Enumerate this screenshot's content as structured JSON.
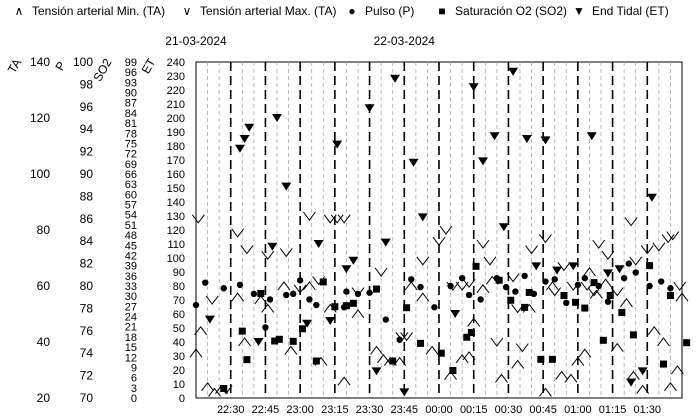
{
  "legend": [
    {
      "symbol": "caret-up",
      "label": "Tensión arterial Min. (TA)"
    },
    {
      "symbol": "caret-down",
      "label": "Tensión arterial Max. (TA)"
    },
    {
      "symbol": "circle",
      "label": "Pulso (P)"
    },
    {
      "symbol": "square",
      "label": "Saturación O2 (SO2)"
    },
    {
      "symbol": "triangle-down",
      "label": "End Tidal (ET)"
    }
  ],
  "chart_data": {
    "type": "scatter",
    "dates": [
      {
        "label": "21-03-2024",
        "at": "22:15"
      },
      {
        "label": "22-03-2024",
        "at": "23:45"
      }
    ],
    "x_ticks": [
      "22:30",
      "22:45",
      "23:00",
      "23:15",
      "23:30",
      "23:45",
      "00:00",
      "00:15",
      "00:30",
      "00:45",
      "01:00",
      "01:15",
      "01:30"
    ],
    "x_range": [
      "22:15",
      "01:45"
    ],
    "axes": [
      {
        "name": "TA",
        "range": [
          20,
          140
        ],
        "ticks": [
          "20",
          "40",
          "60",
          "80",
          "100",
          "120",
          "140"
        ]
      },
      {
        "name": "P",
        "range": [
          70,
          100
        ],
        "ticks": [
          "70",
          "72",
          "74",
          "76",
          "78",
          "80",
          "82",
          "84",
          "86",
          "88",
          "90",
          "92",
          "94",
          "96",
          "98",
          "100"
        ]
      },
      {
        "name": "SO2",
        "range": [
          0,
          99
        ],
        "ticks": [
          "0",
          "3",
          "6",
          "9",
          "12",
          "15",
          "18",
          "21",
          "24",
          "27",
          "30",
          "33",
          "36",
          "39",
          "42",
          "45",
          "48",
          "51",
          "54",
          "57",
          "60",
          "63",
          "66",
          "69",
          "72",
          "75",
          "78",
          "81",
          "84",
          "87",
          "90",
          "93",
          "96",
          "99"
        ]
      },
      {
        "name": "ET",
        "range": [
          0,
          240
        ],
        "ticks": [
          "0",
          "10",
          "20",
          "30",
          "40",
          "50",
          "60",
          "70",
          "80",
          "90",
          "100",
          "110",
          "120",
          "130",
          "140",
          "150",
          "160",
          "170",
          "180",
          "190",
          "200",
          "210",
          "220",
          "230",
          "240"
        ]
      }
    ],
    "grid_major": true,
    "grid_minor": true,
    "series": [
      {
        "name": "Tensión arterial Min. (TA)",
        "marker": "caret-up",
        "points": [
          [
            "22:15",
            36
          ],
          [
            "22:17",
            44
          ],
          [
            "22:20",
            24
          ],
          [
            "22:23",
            22
          ],
          [
            "22:26",
            23
          ],
          [
            "22:33",
            56
          ],
          [
            "22:36",
            40
          ],
          [
            "22:43",
            55
          ],
          [
            "22:46",
            52
          ],
          [
            "22:53",
            60
          ],
          [
            "22:56",
            37
          ],
          [
            "23:04",
            60
          ],
          [
            "23:09",
            33
          ],
          [
            "23:13",
            52
          ],
          [
            "23:19",
            26
          ],
          [
            "23:25",
            50
          ],
          [
            "23:33",
            37
          ],
          [
            "23:36",
            34
          ],
          [
            "23:39",
            33
          ],
          [
            "23:43",
            33
          ],
          [
            "23:48",
            60
          ],
          [
            "23:53",
            56
          ],
          [
            "23:57",
            37
          ],
          [
            "00:05",
            28
          ],
          [
            "00:10",
            34
          ],
          [
            "00:13",
            35
          ],
          [
            "00:15",
            47
          ],
          [
            "00:19",
            59
          ],
          [
            "00:23",
            62
          ],
          [
            "00:27",
            27
          ],
          [
            "00:34",
            32
          ],
          [
            "00:39",
            52
          ],
          [
            "00:46",
            22
          ],
          [
            "00:49",
            60
          ],
          [
            "00:53",
            28
          ],
          [
            "00:57",
            27
          ],
          [
            "01:00",
            33
          ],
          [
            "01:03",
            36
          ],
          [
            "01:05",
            65
          ],
          [
            "01:08",
            57
          ],
          [
            "01:12",
            61
          ],
          [
            "01:17",
            38
          ],
          [
            "01:21",
            54
          ],
          [
            "01:24",
            28
          ],
          [
            "01:28",
            23
          ],
          [
            "01:33",
            44
          ],
          [
            "01:37",
            40
          ],
          [
            "01:40",
            24
          ],
          [
            "01:43",
            30
          ],
          [
            "01:45",
            56
          ]
        ]
      },
      {
        "name": "Tensión arterial Max. (TA)",
        "marker": "caret-down",
        "points": [
          [
            "22:16",
            84
          ],
          [
            "22:22",
            55
          ],
          [
            "22:28",
            23
          ],
          [
            "22:33",
            79
          ],
          [
            "22:37",
            73
          ],
          [
            "22:46",
            71
          ],
          [
            "22:54",
            72
          ],
          [
            "23:00",
            59
          ],
          [
            "23:04",
            85
          ],
          [
            "23:08",
            62
          ],
          [
            "23:13",
            84
          ],
          [
            "23:16",
            84
          ],
          [
            "23:19",
            84
          ],
          [
            "23:25",
            58
          ],
          [
            "23:35",
            65
          ],
          [
            "23:44",
            42
          ],
          [
            "23:46",
            42
          ],
          [
            "23:53",
            69
          ],
          [
            "00:00",
            76
          ],
          [
            "00:03",
            80
          ],
          [
            "00:06",
            60
          ],
          [
            "00:10",
            60
          ],
          [
            "00:13",
            61
          ],
          [
            "00:19",
            75
          ],
          [
            "00:22",
            69
          ],
          [
            "00:25",
            40
          ],
          [
            "00:32",
            63
          ],
          [
            "00:34",
            52
          ],
          [
            "00:36",
            38
          ],
          [
            "00:40",
            73
          ],
          [
            "00:46",
            77
          ],
          [
            "00:50",
            58
          ],
          [
            "00:54",
            67
          ],
          [
            "00:58",
            60
          ],
          [
            "01:04",
            60
          ],
          [
            "01:07",
            58
          ],
          [
            "01:09",
            75
          ],
          [
            "01:13",
            71
          ],
          [
            "01:17",
            58
          ],
          [
            "01:23",
            83
          ],
          [
            "01:25",
            69
          ],
          [
            "01:30",
            73
          ],
          [
            "01:35",
            74
          ],
          [
            "01:39",
            77
          ],
          [
            "01:41",
            78
          ],
          [
            "01:44",
            60
          ]
        ]
      },
      {
        "name": "Pulso (P)",
        "marker": "circle",
        "points": [
          [
            "22:15",
            78.3
          ],
          [
            "22:19",
            80.3
          ],
          [
            "22:27",
            79.8
          ],
          [
            "22:34",
            80.1
          ],
          [
            "22:40",
            79.3
          ],
          [
            "22:45",
            76.3
          ],
          [
            "22:47",
            78.8
          ],
          [
            "22:54",
            79.2
          ],
          [
            "22:57",
            79.3
          ],
          [
            "23:00",
            80.5
          ],
          [
            "23:04",
            78.8
          ],
          [
            "23:07",
            78.3
          ],
          [
            "23:15",
            78.1
          ],
          [
            "23:19",
            78.1
          ],
          [
            "23:20",
            79.5
          ],
          [
            "23:25",
            79.3
          ],
          [
            "23:30",
            79.4
          ],
          [
            "23:37",
            77.0
          ],
          [
            "23:43",
            75.2
          ],
          [
            "23:48",
            80.6
          ],
          [
            "23:52",
            79.9
          ],
          [
            "23:58",
            78.1
          ],
          [
            "00:05",
            80.0
          ],
          [
            "00:10",
            80.7
          ],
          [
            "00:13",
            79.2
          ],
          [
            "00:18",
            78.8
          ],
          [
            "00:25",
            80.7
          ],
          [
            "00:29",
            79.9
          ],
          [
            "00:33",
            79.5
          ],
          [
            "00:37",
            80.9
          ],
          [
            "00:41",
            79.3
          ],
          [
            "00:46",
            80.4
          ],
          [
            "00:50",
            80.6
          ],
          [
            "00:55",
            78.5
          ],
          [
            "01:00",
            80.1
          ],
          [
            "01:03",
            80.7
          ],
          [
            "01:09",
            80.0
          ],
          [
            "01:13",
            78.6
          ],
          [
            "01:20",
            80.7
          ],
          [
            "01:22",
            82.0
          ],
          [
            "01:25",
            81.2
          ],
          [
            "01:31",
            80.0
          ],
          [
            "01:36",
            80.4
          ],
          [
            "01:40",
            79.8
          ]
        ]
      },
      {
        "name": "Saturación O2 (SO2)",
        "marker": "square",
        "points": [
          [
            "22:27",
            2.8
          ],
          [
            "22:35",
            19.7
          ],
          [
            "22:37",
            11.3
          ],
          [
            "22:43",
            30.8
          ],
          [
            "22:49",
            16.8
          ],
          [
            "22:51",
            17.3
          ],
          [
            "22:57",
            16.7
          ],
          [
            "23:01",
            20.4
          ],
          [
            "23:07",
            10.9
          ],
          [
            "23:10",
            34.2
          ],
          [
            "23:15",
            26.9
          ],
          [
            "23:20",
            27.2
          ],
          [
            "23:23",
            27.9
          ],
          [
            "23:33",
            32.1
          ],
          [
            "23:40",
            10.9
          ],
          [
            "23:46",
            26.6
          ],
          [
            "23:52",
            16.1
          ],
          [
            "00:01",
            13.2
          ],
          [
            "00:06",
            8.1
          ],
          [
            "00:12",
            17.9
          ],
          [
            "00:14",
            19.3
          ],
          [
            "00:16",
            38.8
          ],
          [
            "00:26",
            34.7
          ],
          [
            "00:31",
            28.8
          ],
          [
            "00:37",
            26.7
          ],
          [
            "00:39",
            31.1
          ],
          [
            "00:44",
            11.4
          ],
          [
            "00:49",
            11.4
          ],
          [
            "00:54",
            30.2
          ],
          [
            "00:59",
            28.2
          ],
          [
            "01:03",
            26.5
          ],
          [
            "01:07",
            34.0
          ],
          [
            "01:11",
            17.0
          ],
          [
            "01:14",
            30.2
          ],
          [
            "01:19",
            25.2
          ],
          [
            "01:24",
            18.6
          ],
          [
            "01:31",
            39.0
          ],
          [
            "01:37",
            10.0
          ],
          [
            "01:40",
            30.2
          ],
          [
            "01:47",
            16.3
          ]
        ]
      },
      {
        "name": "End Tidal (ET)",
        "marker": "triangle-down",
        "points": [
          [
            "22:21",
            56
          ],
          [
            "22:34",
            178
          ],
          [
            "22:36",
            185
          ],
          [
            "22:38",
            193
          ],
          [
            "22:42",
            40
          ],
          [
            "22:48",
            108
          ],
          [
            "22:50",
            200
          ],
          [
            "22:54",
            151
          ],
          [
            "23:03",
            53
          ],
          [
            "23:08",
            110
          ],
          [
            "23:13",
            55
          ],
          [
            "23:16",
            181
          ],
          [
            "23:20",
            92
          ],
          [
            "23:23",
            98
          ],
          [
            "23:30",
            207
          ],
          [
            "23:33",
            19
          ],
          [
            "23:37",
            111
          ],
          [
            "23:41",
            228
          ],
          [
            "23:45",
            4
          ],
          [
            "23:49",
            168
          ],
          [
            "23:53",
            129
          ],
          [
            "24:07",
            60
          ],
          [
            "00:15",
            222
          ],
          [
            "00:19",
            169
          ],
          [
            "00:24",
            187
          ],
          [
            "00:28",
            122
          ],
          [
            "00:32",
            233
          ],
          [
            "00:38",
            185
          ],
          [
            "00:42",
            94
          ],
          [
            "00:46",
            184
          ],
          [
            "00:51",
            91
          ],
          [
            "00:58",
            94
          ],
          [
            "01:06",
            187
          ],
          [
            "01:13",
            89
          ],
          [
            "01:18",
            92
          ],
          [
            "01:23",
            11
          ],
          [
            "01:28",
            19
          ],
          [
            "01:32",
            143
          ]
        ]
      }
    ]
  }
}
